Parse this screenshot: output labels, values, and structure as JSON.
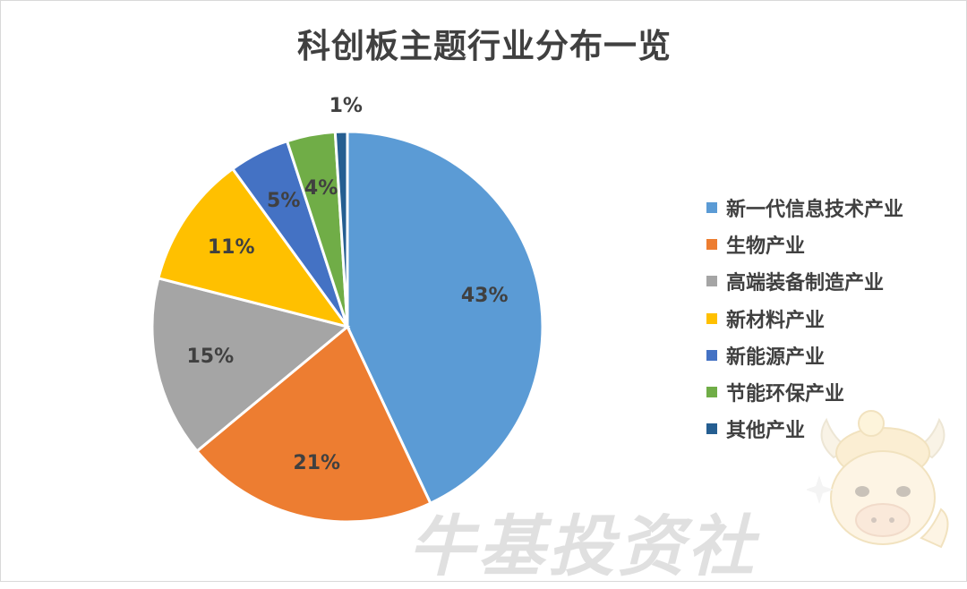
{
  "chart_data": {
    "type": "pie",
    "title": "科创板主题行业分布一览",
    "slices": [
      {
        "label": "新一代信息技术产业",
        "value": 43,
        "display": "43%",
        "color": "#5b9bd5"
      },
      {
        "label": "生物产业",
        "value": 21,
        "display": "21%",
        "color": "#ed7d31"
      },
      {
        "label": "高端装备制造产业",
        "value": 15,
        "display": "15%",
        "color": "#a5a5a5"
      },
      {
        "label": "新材料产业",
        "value": 11,
        "display": "11%",
        "color": "#ffc000"
      },
      {
        "label": "新能源产业",
        "value": 5,
        "display": "5%",
        "color": "#4472c4"
      },
      {
        "label": "节能环保产业",
        "value": 4,
        "display": "4%",
        "color": "#70ad47"
      },
      {
        "label": "其他产业",
        "value": 1,
        "display": "1%",
        "color": "#255e91"
      }
    ],
    "legend_position": "right"
  },
  "watermark": {
    "text": "牛基投资社"
  }
}
